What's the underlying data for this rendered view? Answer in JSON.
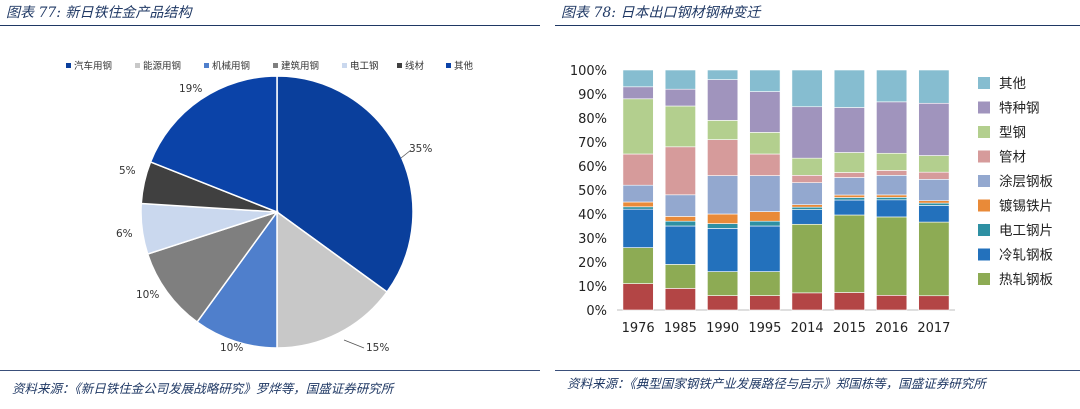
{
  "left": {
    "title": "图表 77: 新日铁住金产品结构",
    "source": "资料来源：《新日铁住金公司发展战略研究》罗烨等，国盛证券研究所",
    "chart_data": {
      "type": "pie",
      "legend_position": "top",
      "labels": [
        "汽车用钢",
        "能源用钢",
        "机械用钢",
        "建筑用钢",
        "电工钢",
        "线材",
        "其他"
      ],
      "values": [
        35,
        15,
        10,
        10,
        6,
        5,
        19
      ],
      "value_labels": [
        "35%",
        "15%",
        "10%",
        "10%",
        "6%",
        "5%",
        "19%"
      ],
      "colors": [
        "#0a3f9c",
        "#c8c8c8",
        "#4f7fcc",
        "#7f7f7f",
        "#cad8ee",
        "#404040",
        "#0b43a8"
      ]
    }
  },
  "right": {
    "title": "图表 78: 日本出口钢材钢种变迁",
    "source": "资料来源：《典型国家钢铁产业发展路径与启示》郑国栋等，国盛证券研究所",
    "chart_data": {
      "type": "bar",
      "stacked": true,
      "percent": true,
      "legend_position": "right",
      "categories": [
        "1976",
        "1985",
        "1990",
        "1995",
        "2014",
        "2015",
        "2016",
        "2017"
      ],
      "y_ticks": [
        "0%",
        "10%",
        "20%",
        "30%",
        "40%",
        "50%",
        "60%",
        "70%",
        "80%",
        "90%",
        "100%"
      ],
      "ylim": [
        0,
        100
      ],
      "series": [
        {
          "name": "热轧钢板",
          "color": "#8dab54",
          "values": [
            15,
            10,
            10,
            10,
            28,
            31,
            32,
            31
          ]
        },
        {
          "name": "冷轧钢板",
          "color": "#2371bc",
          "values": [
            16,
            16,
            18,
            19,
            6,
            6,
            7,
            7
          ]
        },
        {
          "name": "电工钢片",
          "color": "#2e90a3",
          "values": [
            1,
            2,
            2,
            2,
            1,
            1,
            1,
            1
          ]
        },
        {
          "name": "镀锡铁片",
          "color": "#e98a38",
          "values": [
            2,
            2,
            4,
            4,
            1,
            1,
            1,
            1
          ]
        },
        {
          "name": "涂层钢板",
          "color": "#93a8cf",
          "values": [
            7,
            9,
            16,
            15,
            9,
            7,
            8,
            9
          ]
        },
        {
          "name": "管材",
          "color": "#d69b9b",
          "values": [
            13,
            20,
            15,
            9,
            3,
            2,
            2,
            3
          ]
        },
        {
          "name": "型钢",
          "color": "#b3cf8e",
          "values": [
            23,
            17,
            8,
            9,
            7,
            8,
            7,
            7
          ]
        },
        {
          "name": "特种钢",
          "color": "#a094bd",
          "values": [
            5,
            7,
            17,
            17,
            21,
            18,
            21,
            22
          ]
        },
        {
          "name": "其他",
          "color": "#86bdd0",
          "values": [
            7,
            8,
            4,
            9,
            15,
            15,
            13,
            14
          ]
        }
      ],
      "bottom_segments": {
        "color": "#b34545",
        "values": [
          11,
          9,
          6,
          6,
          7,
          7,
          6,
          6
        ]
      }
    }
  }
}
